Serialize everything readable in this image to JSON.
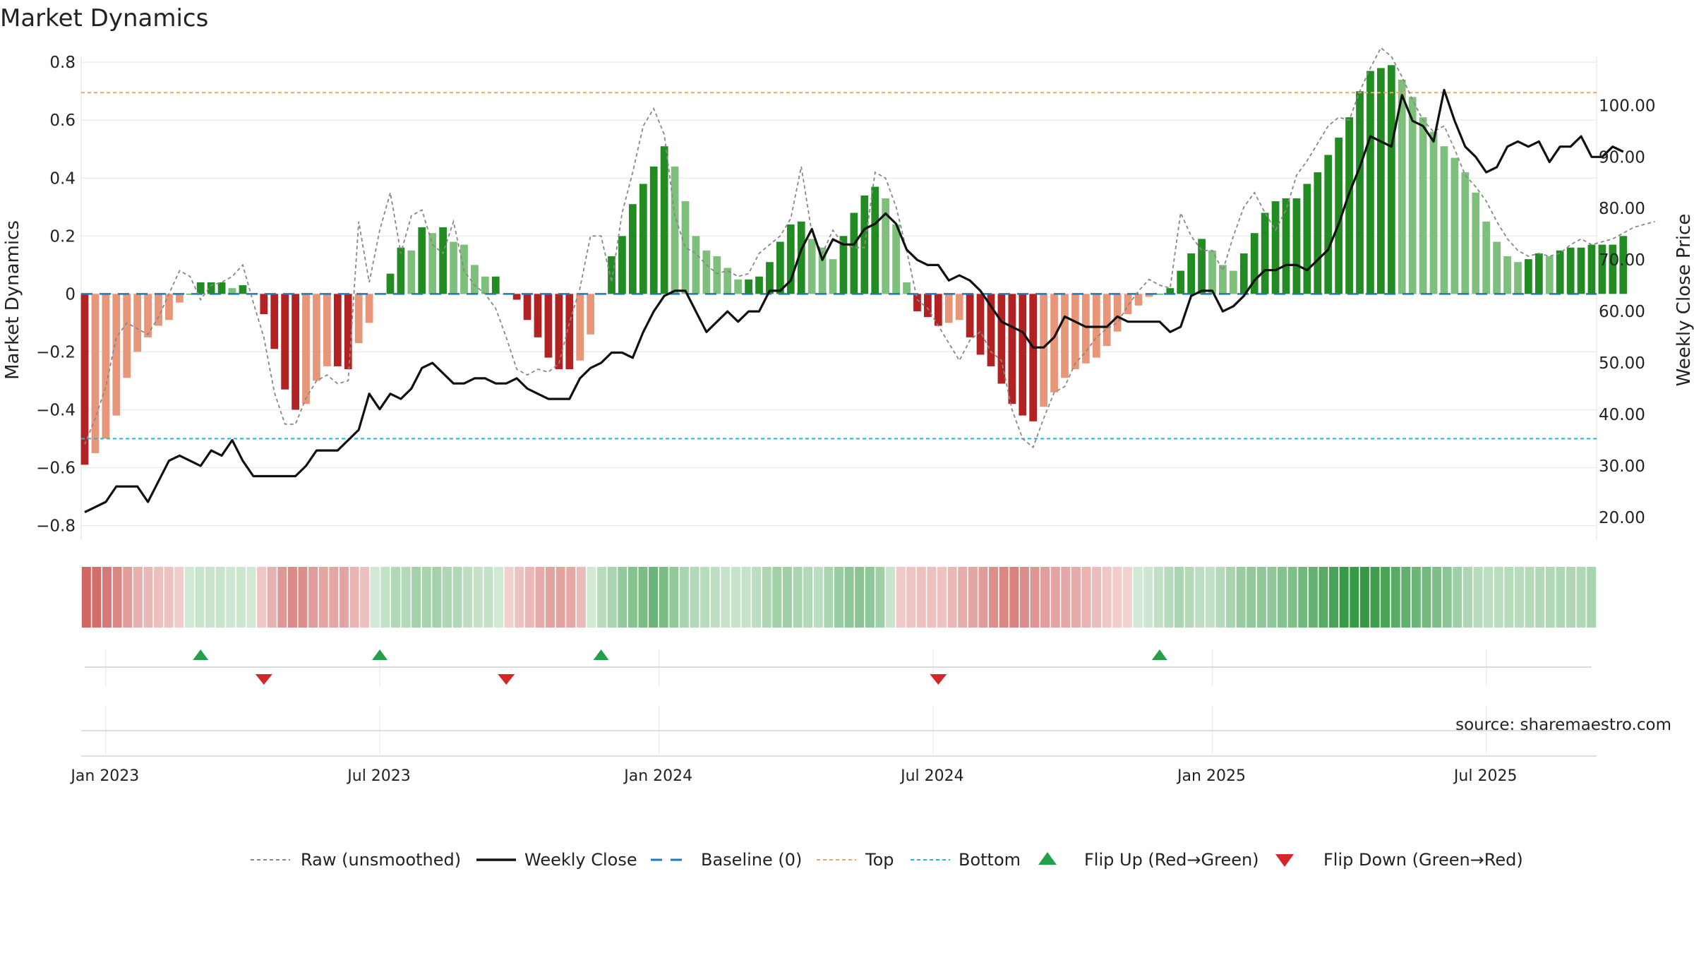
{
  "chart_data": {
    "type": "bar",
    "title": "Market Dynamics",
    "ylabel_left": "Market Dynamics",
    "ylabel_right": "Weekly Close Price",
    "source": "source: sharemaestro.com",
    "ylim_left": [
      -0.85,
      0.82
    ],
    "ylim_right": [
      15.6,
      109.5
    ],
    "yticks_left": [
      {
        "v": -0.8,
        "label": "−0.8"
      },
      {
        "v": -0.6,
        "label": "−0.6"
      },
      {
        "v": -0.4,
        "label": "−0.4"
      },
      {
        "v": -0.2,
        "label": "−0.2"
      },
      {
        "v": 0,
        "label": "0"
      },
      {
        "v": 0.2,
        "label": "0.2"
      },
      {
        "v": 0.4,
        "label": "0.4"
      },
      {
        "v": 0.6,
        "label": "0.6"
      },
      {
        "v": 0.8,
        "label": "0.8"
      }
    ],
    "yticks_right": [
      {
        "v": 20,
        "label": "20.00"
      },
      {
        "v": 30,
        "label": "30.00"
      },
      {
        "v": 40,
        "label": "40.00"
      },
      {
        "v": 50,
        "label": "50.00"
      },
      {
        "v": 60,
        "label": "60.00"
      },
      {
        "v": 70,
        "label": "70.00"
      },
      {
        "v": 80,
        "label": "80.00"
      },
      {
        "v": 90,
        "label": "90.00"
      },
      {
        "v": 100,
        "label": "100.00"
      }
    ],
    "xticks": [
      {
        "week": 2,
        "label": "Jan 2023"
      },
      {
        "week": 28,
        "label": "Jul 2023"
      },
      {
        "week": 54.5,
        "label": "Jan 2024"
      },
      {
        "week": 80.5,
        "label": "Jul 2024"
      },
      {
        "week": 107,
        "label": "Jan 2025"
      },
      {
        "week": 133,
        "label": "Jul 2025"
      }
    ],
    "top_level": 0.695,
    "bottom_level": -0.5,
    "baseline": 0,
    "colors": {
      "strong_green": "#228B22",
      "light_green": "#7dbf7b",
      "strong_red": "#b22222",
      "light_red": "#e8967a",
      "raw": "#888888",
      "close": "#111111",
      "baseline": "#1f77b4",
      "top": "#f4a460",
      "bottom": "#17becf",
      "grid": "#e8e8e8"
    },
    "weeks_note": "week index 0 = last week of Dec 2022, weekly through Nov 2025",
    "dynamics": [
      -0.59,
      -0.55,
      -0.5,
      -0.42,
      -0.29,
      -0.2,
      -0.15,
      -0.11,
      -0.09,
      -0.03,
      0,
      0.04,
      0.04,
      0.04,
      0.02,
      0.03,
      0,
      -0.07,
      -0.19,
      -0.33,
      -0.4,
      -0.38,
      -0.3,
      -0.25,
      -0.25,
      -0.26,
      -0.17,
      -0.1,
      0,
      0.07,
      0.16,
      0.15,
      0.23,
      0.21,
      0.23,
      0.18,
      0.17,
      0.1,
      0.06,
      0.06,
      0,
      -0.02,
      -0.09,
      -0.15,
      -0.22,
      -0.26,
      -0.26,
      -0.23,
      -0.14,
      0,
      0.13,
      0.2,
      0.31,
      0.38,
      0.44,
      0.51,
      0.44,
      0.32,
      0.2,
      0.15,
      0.13,
      0.09,
      0.05,
      0.05,
      0.06,
      0.11,
      0.18,
      0.24,
      0.25,
      0.19,
      0.16,
      0.12,
      0.2,
      0.28,
      0.34,
      0.37,
      0.33,
      0.24,
      0.04,
      -0.06,
      -0.08,
      -0.11,
      -0.1,
      -0.09,
      -0.15,
      -0.21,
      -0.25,
      -0.31,
      -0.38,
      -0.42,
      -0.44,
      -0.39,
      -0.34,
      -0.29,
      -0.26,
      -0.24,
      -0.22,
      -0.18,
      -0.13,
      -0.07,
      -0.04,
      -0.01,
      0,
      0.02,
      0.08,
      0.14,
      0.19,
      0.15,
      0.1,
      0.08,
      0.14,
      0.21,
      0.28,
      0.32,
      0.33,
      0.33,
      0.38,
      0.42,
      0.48,
      0.54,
      0.61,
      0.7,
      0.77,
      0.78,
      0.79,
      0.74,
      0.68,
      0.61,
      0.56,
      0.51,
      0.47,
      0.42,
      0.35,
      0.25,
      0.18,
      0.13,
      0.11,
      0.12,
      0.14,
      0.13,
      0.15,
      0.16,
      0.16,
      0.17,
      0.17,
      0.17,
      0.2
    ],
    "raw": [
      -0.52,
      -0.43,
      -0.32,
      -0.15,
      -0.1,
      -0.12,
      -0.14,
      -0.08,
      0,
      0.08,
      0.06,
      -0.02,
      0.03,
      0.04,
      0.06,
      0.1,
      -0.03,
      -0.15,
      -0.34,
      -0.45,
      -0.45,
      -0.36,
      -0.3,
      -0.28,
      -0.31,
      -0.3,
      0.25,
      0.04,
      0.22,
      0.35,
      0.14,
      0.27,
      0.29,
      0.17,
      0.14,
      0.25,
      0.08,
      0.03,
      0,
      -0.05,
      -0.15,
      -0.26,
      -0.28,
      -0.26,
      -0.27,
      -0.24,
      -0.1,
      0.02,
      0.2,
      0.2,
      0.04,
      0.28,
      0.42,
      0.58,
      0.64,
      0.55,
      0.27,
      0.16,
      0.14,
      0.1,
      0.07,
      0.08,
      0.06,
      0.07,
      0.14,
      0.17,
      0.2,
      0.26,
      0.44,
      0.21,
      0.14,
      0.22,
      0.17,
      0.16,
      0.16,
      0.42,
      0.4,
      0.3,
      0.15,
      -0.02,
      -0.05,
      -0.11,
      -0.17,
      -0.23,
      -0.16,
      -0.13,
      -0.2,
      -0.23,
      -0.4,
      -0.5,
      -0.53,
      -0.43,
      -0.34,
      -0.32,
      -0.24,
      -0.2,
      -0.15,
      -0.12,
      -0.1,
      -0.04,
      0.01,
      0.05,
      0.03,
      0.02,
      0.28,
      0.2,
      0.15,
      0.15,
      0.08,
      0.2,
      0.3,
      0.35,
      0.28,
      0.22,
      0.29,
      0.41,
      0.46,
      0.52,
      0.58,
      0.61,
      0.6,
      0.7,
      0.78,
      0.85,
      0.82,
      0.75,
      0.67,
      0.6,
      0.56,
      0.58,
      0.5,
      0.41,
      0.37,
      0.32,
      0.25,
      0.19,
      0.15,
      0.13,
      0.14,
      0.13,
      0.14,
      0.17,
      0.19,
      0.17,
      0.18,
      0.19,
      0.21,
      0.23,
      0.24,
      0.25
    ],
    "weekly_close": [
      21,
      22,
      23,
      26,
      26,
      26,
      23,
      27,
      31,
      32,
      31,
      30,
      33,
      32,
      35,
      31,
      28,
      28,
      28,
      28,
      28,
      30,
      33,
      33,
      33,
      35,
      37,
      44,
      41,
      44,
      43,
      45,
      49,
      50,
      48,
      46,
      46,
      47,
      47,
      46,
      46,
      47,
      45,
      44,
      43,
      43,
      43,
      47,
      49,
      50,
      52,
      52,
      51,
      56,
      60,
      63,
      64,
      64,
      60,
      56,
      58,
      60,
      58,
      60,
      60,
      64,
      64,
      66,
      72,
      76,
      70,
      74,
      73,
      73,
      76,
      77,
      79,
      77,
      72,
      70,
      69,
      69,
      66,
      67,
      66,
      64,
      61,
      58,
      57,
      56,
      53,
      53,
      55,
      59,
      58,
      57,
      57,
      57,
      59,
      58,
      58,
      58,
      58,
      56,
      57,
      63,
      64,
      64,
      60,
      61,
      63,
      66,
      68,
      68,
      69,
      69,
      68,
      70,
      72,
      77,
      83,
      88,
      94,
      93,
      92,
      102,
      97,
      96,
      93,
      103,
      97,
      92,
      90,
      87,
      88,
      92,
      93,
      92,
      93,
      89,
      92,
      92,
      94,
      90,
      90,
      92,
      91
    ],
    "flip_up_weeks": [
      11,
      28,
      49,
      102
    ],
    "flip_down_weeks": [
      17,
      40,
      81
    ],
    "legend": [
      {
        "key": "raw",
        "label": "Raw (unsmoothed)"
      },
      {
        "key": "close",
        "label": "Weekly Close"
      },
      {
        "key": "baseline",
        "label": "Baseline (0)"
      },
      {
        "key": "top",
        "label": "Top"
      },
      {
        "key": "bottom",
        "label": "Bottom"
      },
      {
        "key": "flipup",
        "label": "Flip Up (Red→Green)"
      },
      {
        "key": "flipdown",
        "label": "Flip Down (Green→Red)"
      }
    ]
  }
}
